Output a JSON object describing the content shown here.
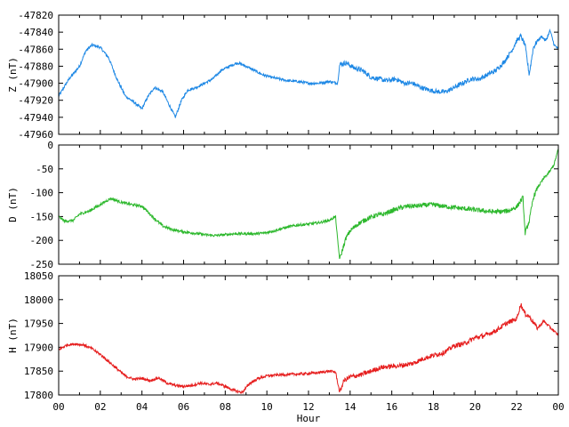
{
  "chart_data": [
    {
      "type": "line",
      "ylabel": "Z (nT)",
      "ylim": [
        -47960,
        -47820
      ],
      "yticks": [
        -47820,
        -47840,
        -47860,
        -47880,
        -47900,
        -47920,
        -47940,
        -47960
      ],
      "xlim": [
        0,
        24
      ],
      "color": "#1e88e5",
      "x": [
        0,
        0.5,
        1,
        1.3,
        1.6,
        2,
        2.4,
        2.8,
        3.2,
        3.6,
        4,
        4.3,
        4.6,
        5,
        5.3,
        5.6,
        5.9,
        6.2,
        6.6,
        7,
        7.4,
        7.8,
        8.2,
        8.6,
        9,
        9.4,
        9.8,
        10.2,
        10.6,
        11,
        11.5,
        12,
        12.5,
        13,
        13.4,
        13.5,
        13.8,
        14.2,
        14.6,
        15,
        15.4,
        15.8,
        16.2,
        16.6,
        17,
        17.4,
        17.8,
        18.2,
        18.6,
        19,
        19.4,
        19.8,
        20.2,
        20.6,
        21,
        21.4,
        21.8,
        22,
        22.2,
        22.4,
        22.6,
        22.8,
        23,
        23.2,
        23.4,
        23.6,
        23.8,
        24
      ],
      "values": [
        -47915,
        -47895,
        -47880,
        -47862,
        -47855,
        -47858,
        -47870,
        -47895,
        -47915,
        -47922,
        -47930,
        -47915,
        -47905,
        -47910,
        -47925,
        -47940,
        -47920,
        -47908,
        -47905,
        -47900,
        -47895,
        -47885,
        -47880,
        -47876,
        -47880,
        -47885,
        -47890,
        -47893,
        -47895,
        -47897,
        -47898,
        -47900,
        -47900,
        -47898,
        -47900,
        -47878,
        -47876,
        -47882,
        -47885,
        -47893,
        -47895,
        -47897,
        -47895,
        -47900,
        -47900,
        -47905,
        -47908,
        -47910,
        -47910,
        -47905,
        -47900,
        -47895,
        -47895,
        -47890,
        -47885,
        -47875,
        -47860,
        -47850,
        -47845,
        -47855,
        -47890,
        -47858,
        -47850,
        -47845,
        -47850,
        -47838,
        -47855,
        -47860
      ]
    },
    {
      "type": "line",
      "ylabel": "D (nT)",
      "ylim": [
        -250,
        0
      ],
      "yticks": [
        0,
        -50,
        -100,
        -150,
        -200,
        -250
      ],
      "xlim": [
        0,
        24
      ],
      "color": "#2db82d",
      "x": [
        0,
        0.3,
        0.7,
        1,
        1.5,
        2,
        2.5,
        3,
        3.5,
        4,
        4.5,
        5,
        5.5,
        6,
        6.5,
        7,
        7.5,
        8,
        8.5,
        9,
        9.5,
        10,
        10.5,
        11,
        11.5,
        12,
        12.5,
        13,
        13.3,
        13.4,
        13.5,
        13.6,
        13.8,
        14,
        14.4,
        14.8,
        15.2,
        15.6,
        16,
        16.4,
        16.8,
        17.2,
        17.6,
        18,
        18.4,
        18.8,
        19.2,
        19.6,
        20,
        20.4,
        20.8,
        21.2,
        21.6,
        22,
        22.3,
        22.4,
        22.6,
        22.8,
        23,
        23.3,
        23.6,
        23.8,
        24
      ],
      "values": [
        -150,
        -160,
        -158,
        -145,
        -138,
        -125,
        -112,
        -120,
        -125,
        -128,
        -150,
        -170,
        -178,
        -182,
        -185,
        -188,
        -190,
        -188,
        -186,
        -186,
        -186,
        -184,
        -178,
        -172,
        -168,
        -166,
        -163,
        -158,
        -150,
        -200,
        -240,
        -225,
        -195,
        -180,
        -165,
        -155,
        -148,
        -145,
        -138,
        -132,
        -128,
        -128,
        -126,
        -125,
        -128,
        -130,
        -132,
        -134,
        -136,
        -138,
        -140,
        -140,
        -138,
        -130,
        -110,
        -185,
        -160,
        -110,
        -90,
        -70,
        -55,
        -40,
        -8
      ]
    },
    {
      "type": "line",
      "ylabel": "H (nT)",
      "ylim": [
        17800,
        18050
      ],
      "yticks": [
        18050,
        18000,
        17950,
        17900,
        17850,
        17800
      ],
      "xlim": [
        0,
        24
      ],
      "xticks": [
        "00",
        "02",
        "04",
        "06",
        "08",
        "10",
        "12",
        "14",
        "16",
        "18",
        "20",
        "22",
        "00"
      ],
      "xlabel": "Hour",
      "color": "#e61e1e",
      "x": [
        0,
        0.4,
        0.8,
        1.2,
        1.6,
        2,
        2.4,
        2.8,
        3.2,
        3.6,
        4,
        4.4,
        4.8,
        5.2,
        5.6,
        6,
        6.4,
        6.8,
        7.2,
        7.6,
        8,
        8.4,
        8.8,
        9.2,
        9.6,
        10,
        10.5,
        11,
        11.5,
        12,
        12.5,
        13,
        13.3,
        13.5,
        13.7,
        14,
        14.5,
        15,
        15.5,
        16,
        16.5,
        17,
        17.5,
        18,
        18.5,
        19,
        19.5,
        20,
        20.5,
        21,
        21.5,
        22,
        22.2,
        22.4,
        22.6,
        23,
        23.3,
        23.6,
        24
      ],
      "values": [
        17895,
        17905,
        17907,
        17905,
        17897,
        17885,
        17870,
        17855,
        17840,
        17833,
        17835,
        17830,
        17836,
        17825,
        17820,
        17818,
        17820,
        17825,
        17822,
        17825,
        17818,
        17810,
        17805,
        17825,
        17835,
        17840,
        17842,
        17843,
        17844,
        17845,
        17847,
        17850,
        17848,
        17805,
        17830,
        17838,
        17842,
        17850,
        17858,
        17860,
        17862,
        17866,
        17876,
        17883,
        17889,
        17903,
        17908,
        17920,
        17925,
        17935,
        17950,
        17960,
        17990,
        17970,
        17965,
        17940,
        17955,
        17942,
        17925
      ]
    }
  ]
}
